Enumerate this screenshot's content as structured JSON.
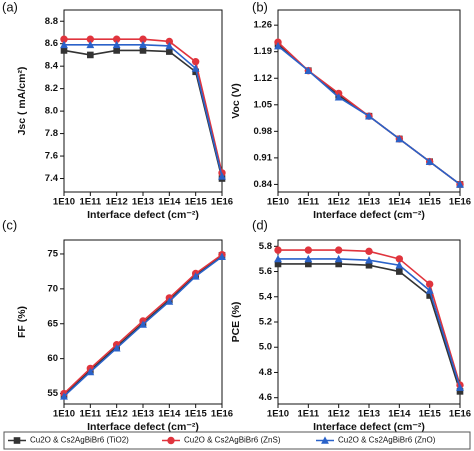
{
  "chart_data": [
    {
      "type": "line",
      "label": "(a)",
      "x_label": "Interface defect (cm⁻²)",
      "y_label": "Jsc ( mA/cm²)",
      "categories": [
        "1E10",
        "1E11",
        "1E12",
        "1E13",
        "1E14",
        "1E15",
        "1E16"
      ],
      "ylim": [
        7.28,
        8.9
      ],
      "yticks": [
        {
          "value": 7.4,
          "label": "7.4"
        },
        {
          "value": 7.6,
          "label": "7.6"
        },
        {
          "value": 7.8,
          "label": "7.8"
        },
        {
          "value": 8.0,
          "label": "8.0"
        },
        {
          "value": 8.2,
          "label": "8.2"
        },
        {
          "value": 8.4,
          "label": "8.4"
        },
        {
          "value": 8.6,
          "label": "8.6"
        },
        {
          "value": 8.8,
          "label": "8.8"
        }
      ],
      "legend": "bottom",
      "series": [
        {
          "name": "Cu2O & Cs2AgBiBr6 (TiO2)",
          "color": "#333333",
          "marker": "square",
          "values": [
            8.54,
            8.5,
            8.54,
            8.54,
            8.53,
            8.35,
            7.4
          ]
        },
        {
          "name": "Cu2O & Cs2AgBiBr6 (ZnS)",
          "color": "#e0343d",
          "marker": "circle",
          "values": [
            8.64,
            8.64,
            8.64,
            8.64,
            8.62,
            8.44,
            7.45
          ]
        },
        {
          "name": "Cu2O & Cs2AgBiBr6 (ZnO)",
          "color": "#2a62c9",
          "marker": "triangle",
          "values": [
            8.59,
            8.59,
            8.59,
            8.59,
            8.58,
            8.38,
            7.42
          ]
        }
      ]
    },
    {
      "type": "line",
      "label": "(b)",
      "x_label": "Interface defect (cm⁻²)",
      "y_label": "Voc (V)",
      "categories": [
        "1E10",
        "1E11",
        "1E12",
        "1E13",
        "1E14",
        "1E15",
        "1E16"
      ],
      "ylim": [
        0.82,
        1.3
      ],
      "yticks": [
        0.84,
        0.91,
        0.98,
        1.05,
        1.12,
        1.19,
        1.26
      ],
      "series": [
        {
          "name": "Cu2O & Cs2AgBiBr6 (TiO2)",
          "color": "#333333",
          "marker": "square",
          "values": [
            1.21,
            1.14,
            1.075,
            1.02,
            0.96,
            0.9,
            0.84
          ]
        },
        {
          "name": "Cu2O & Cs2AgBiBr6 (ZnS)",
          "color": "#e0343d",
          "marker": "circle",
          "values": [
            1.215,
            1.14,
            1.08,
            1.02,
            0.96,
            0.9,
            0.84
          ]
        },
        {
          "name": "Cu2O & Cs2AgBiBr6 (ZnO)",
          "color": "#2a62c9",
          "marker": "triangle",
          "values": [
            1.205,
            1.14,
            1.07,
            1.02,
            0.96,
            0.9,
            0.84
          ]
        }
      ]
    },
    {
      "type": "line",
      "label": "(c)",
      "x_label": "Interface defect (cm⁻²)",
      "y_label": "FF (%)",
      "categories": [
        "1E10",
        "1E11",
        "1E12",
        "1E13",
        "1E14",
        "1E15",
        "1E16"
      ],
      "ylim": [
        53.5,
        77
      ],
      "yticks": [
        55,
        60,
        65,
        70,
        75
      ],
      "series": [
        {
          "name": "Cu2O & Cs2AgBiBr6 (TiO2)",
          "color": "#333333",
          "marker": "square",
          "values": [
            54.8,
            58.3,
            61.7,
            65.1,
            68.4,
            72.0,
            74.8
          ]
        },
        {
          "name": "Cu2O & Cs2AgBiBr6 (ZnS)",
          "color": "#e0343d",
          "marker": "circle",
          "values": [
            55.0,
            58.6,
            62.0,
            65.4,
            68.7,
            72.2,
            74.9
          ]
        },
        {
          "name": "Cu2O & Cs2AgBiBr6 (ZnO)",
          "color": "#2a62c9",
          "marker": "triangle",
          "values": [
            54.6,
            58.1,
            61.5,
            64.9,
            68.2,
            71.8,
            74.6
          ]
        }
      ]
    },
    {
      "type": "line",
      "label": "(d)",
      "x_label": "Interface defect (cm⁻²)",
      "y_label": "PCE (%)",
      "categories": [
        "1E10",
        "1E11",
        "1E12",
        "1E13",
        "1E14",
        "1E15",
        "1E16"
      ],
      "ylim": [
        4.55,
        5.85
      ],
      "yticks": [
        {
          "value": 4.6,
          "label": "4.6"
        },
        {
          "value": 4.8,
          "label": "4.8"
        },
        {
          "value": 5.0,
          "label": "5.0"
        },
        {
          "value": 5.2,
          "label": "5.2"
        },
        {
          "value": 5.4,
          "label": "5.4"
        },
        {
          "value": 5.6,
          "label": "5.6"
        },
        {
          "value": 5.8,
          "label": "5.8"
        }
      ],
      "series": [
        {
          "name": "Cu2O & Cs2AgBiBr6 (TiO2)",
          "color": "#333333",
          "marker": "square",
          "values": [
            5.66,
            5.66,
            5.66,
            5.65,
            5.6,
            5.41,
            4.65
          ]
        },
        {
          "name": "Cu2O & Cs2AgBiBr6 (ZnS)",
          "color": "#e0343d",
          "marker": "circle",
          "values": [
            5.77,
            5.77,
            5.77,
            5.76,
            5.7,
            5.5,
            4.7
          ]
        },
        {
          "name": "Cu2O & Cs2AgBiBr6 (ZnO)",
          "color": "#2a62c9",
          "marker": "triangle",
          "values": [
            5.7,
            5.7,
            5.7,
            5.69,
            5.65,
            5.45,
            4.68
          ]
        }
      ]
    }
  ]
}
